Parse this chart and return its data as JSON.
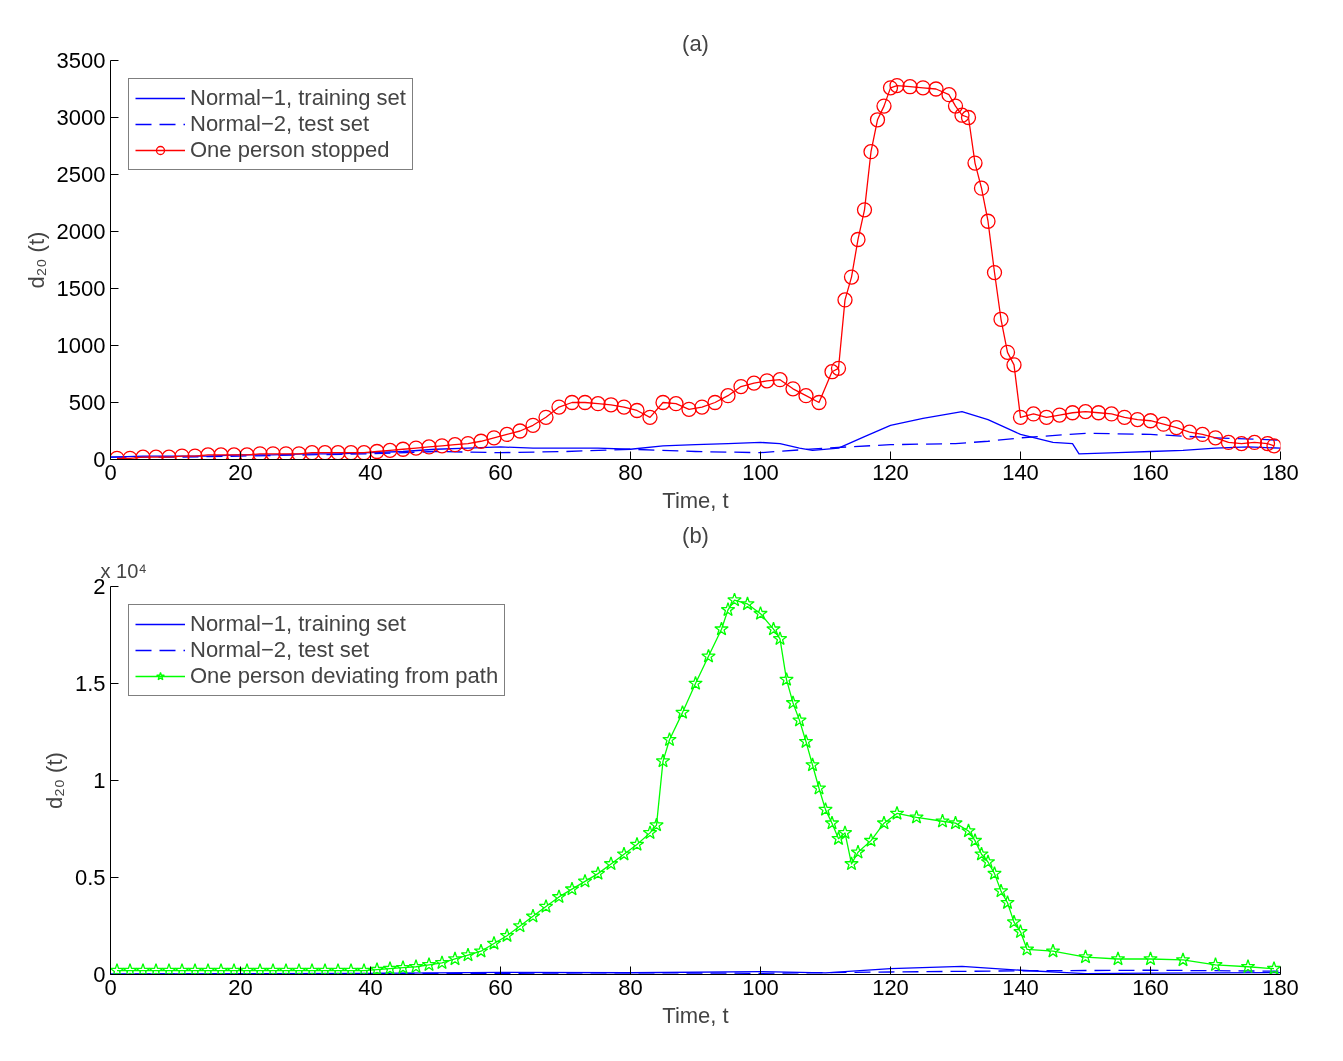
{
  "chart_data": [
    {
      "type": "line",
      "title": "(a)",
      "xlabel": "Time, t",
      "ylabel": "d₂₀ (t)",
      "xlim": [
        0,
        180
      ],
      "ylim": [
        0,
        3500
      ],
      "xticks": [
        0,
        20,
        40,
        60,
        80,
        100,
        120,
        140,
        160,
        180
      ],
      "yticks": [
        0,
        500,
        1000,
        1500,
        2000,
        2500,
        3000,
        3500
      ],
      "grid": false,
      "legend": "top left",
      "series": [
        {
          "name": "Normal−1, training set",
          "color": "#0000ff",
          "line_style": "solid",
          "marker": "none",
          "x": [
            0,
            5,
            10,
            15,
            20,
            25,
            30,
            35,
            40,
            45,
            50,
            55,
            60,
            65,
            70,
            75,
            80,
            85,
            90,
            95,
            100,
            103,
            106,
            108,
            112,
            116,
            120,
            125,
            131,
            135,
            140,
            145,
            148,
            149,
            155,
            160,
            165,
            170,
            175,
            180
          ],
          "values": [
            20,
            30,
            30,
            30,
            40,
            40,
            50,
            50,
            60,
            70,
            90,
            100,
            110,
            100,
            100,
            100,
            90,
            120,
            130,
            140,
            150,
            140,
            100,
            80,
            100,
            200,
            300,
            360,
            420,
            350,
            220,
            150,
            140,
            50,
            60,
            70,
            80,
            100,
            110,
            100
          ]
        },
        {
          "name": "Normal−2, test set",
          "color": "#0000ff",
          "line_style": "dashed",
          "marker": "none",
          "x": [
            0,
            10,
            20,
            30,
            40,
            50,
            60,
            70,
            80,
            90,
            100,
            110,
            120,
            130,
            135,
            140,
            150,
            160,
            170,
            180
          ],
          "values": [
            20,
            20,
            30,
            40,
            50,
            70,
            60,
            70,
            90,
            70,
            60,
            100,
            130,
            140,
            160,
            190,
            230,
            220,
            190,
            170
          ]
        },
        {
          "name": "One person stopped",
          "color": "#ff0000",
          "line_style": "solid",
          "marker": "circle",
          "x": [
            1,
            3,
            5,
            7,
            9,
            11,
            13,
            15,
            17,
            19,
            21,
            23,
            25,
            27,
            29,
            31,
            33,
            35,
            37,
            39,
            41,
            43,
            45,
            47,
            49,
            51,
            53,
            55,
            57,
            59,
            61,
            63,
            65,
            67,
            69,
            71,
            73,
            75,
            77,
            79,
            81,
            83,
            85,
            87,
            89,
            91,
            93,
            95,
            97,
            99,
            101,
            103,
            105,
            107,
            109,
            111,
            112,
            113,
            114,
            115,
            116,
            117,
            118,
            119,
            120,
            121,
            123,
            125,
            127,
            129,
            130,
            131,
            132,
            133,
            134,
            135,
            136,
            137,
            138,
            139,
            140,
            142,
            144,
            146,
            148,
            150,
            152,
            154,
            156,
            158,
            160,
            162,
            164,
            166,
            168,
            170,
            172,
            174,
            176,
            178,
            179
          ],
          "values": [
            10,
            10,
            20,
            20,
            20,
            30,
            30,
            40,
            40,
            40,
            40,
            50,
            50,
            50,
            50,
            60,
            60,
            60,
            60,
            60,
            70,
            80,
            90,
            100,
            110,
            120,
            130,
            140,
            160,
            190,
            220,
            250,
            300,
            370,
            460,
            500,
            500,
            490,
            480,
            460,
            430,
            370,
            500,
            490,
            440,
            460,
            500,
            560,
            640,
            670,
            690,
            700,
            620,
            560,
            500,
            770,
            800,
            1400,
            1600,
            1930,
            2190,
            2700,
            2980,
            3100,
            3260,
            3280,
            3270,
            3260,
            3250,
            3200,
            3100,
            3020,
            3000,
            2600,
            2380,
            2090,
            1640,
            1230,
            940,
            830,
            370,
            400,
            370,
            390,
            410,
            420,
            410,
            400,
            370,
            350,
            340,
            310,
            280,
            240,
            220,
            190,
            150,
            140,
            150,
            140,
            120
          ]
        }
      ]
    },
    {
      "type": "line",
      "title": "(b)",
      "xlabel": "Time, t",
      "ylabel": "d₂₀ (t)",
      "annotations": [
        "x 10⁴"
      ],
      "xlim": [
        0,
        180
      ],
      "ylim": [
        0,
        2
      ],
      "xticks": [
        0,
        20,
        40,
        60,
        80,
        100,
        120,
        140,
        160,
        180
      ],
      "yticks": [
        0,
        0.5,
        1,
        1.5,
        2
      ],
      "grid": false,
      "legend": "top left",
      "series": [
        {
          "name": "Normal−1, training set",
          "color": "#0000ff",
          "line_style": "solid",
          "marker": "none",
          "x": [
            0,
            20,
            40,
            60,
            80,
            100,
            110,
            120,
            131,
            140,
            150,
            160,
            180
          ],
          "values": [
            0.002,
            0.004,
            0.006,
            0.011,
            0.009,
            0.015,
            0.008,
            0.03,
            0.042,
            0.022,
            0.005,
            0.007,
            0.01
          ]
        },
        {
          "name": "Normal−2, test set",
          "color": "#0000ff",
          "line_style": "dashed",
          "marker": "none",
          "x": [
            0,
            40,
            60,
            80,
            100,
            120,
            140,
            160,
            180
          ],
          "values": [
            0.002,
            0.005,
            0.006,
            0.009,
            0.006,
            0.013,
            0.019,
            0.022,
            0.017
          ]
        },
        {
          "name": "One person deviating from path",
          "color": "#00ff00",
          "line_style": "solid",
          "marker": "star",
          "x": [
            1,
            3,
            5,
            7,
            9,
            11,
            13,
            15,
            17,
            19,
            21,
            23,
            25,
            27,
            29,
            31,
            33,
            35,
            37,
            39,
            41,
            43,
            45,
            47,
            49,
            51,
            53,
            55,
            57,
            59,
            61,
            63,
            65,
            67,
            69,
            71,
            73,
            75,
            77,
            79,
            81,
            83,
            84,
            85,
            86,
            88,
            90,
            92,
            94,
            95,
            96,
            98,
            100,
            102,
            103,
            104,
            105,
            106,
            107,
            108,
            109,
            110,
            111,
            112,
            113,
            114,
            115,
            117,
            119,
            121,
            124,
            128,
            130,
            132,
            133,
            134,
            135,
            136,
            137,
            138,
            139,
            140,
            141,
            145,
            150,
            155,
            160,
            165,
            170,
            175,
            179
          ],
          "values": [
            0.02,
            0.02,
            0.02,
            0.02,
            0.02,
            0.02,
            0.02,
            0.02,
            0.02,
            0.02,
            0.02,
            0.02,
            0.02,
            0.02,
            0.02,
            0.02,
            0.02,
            0.02,
            0.02,
            0.02,
            0.025,
            0.03,
            0.035,
            0.04,
            0.05,
            0.06,
            0.08,
            0.1,
            0.12,
            0.16,
            0.2,
            0.25,
            0.3,
            0.35,
            0.4,
            0.44,
            0.48,
            0.52,
            0.57,
            0.62,
            0.67,
            0.73,
            0.77,
            1.1,
            1.21,
            1.35,
            1.5,
            1.64,
            1.78,
            1.88,
            1.93,
            1.91,
            1.86,
            1.78,
            1.73,
            1.52,
            1.4,
            1.31,
            1.2,
            1.08,
            0.96,
            0.85,
            0.78,
            0.7,
            0.73,
            0.57,
            0.63,
            0.69,
            0.78,
            0.83,
            0.81,
            0.79,
            0.78,
            0.74,
            0.69,
            0.62,
            0.58,
            0.52,
            0.43,
            0.37,
            0.27,
            0.22,
            0.13,
            0.12,
            0.09,
            0.08,
            0.08,
            0.075,
            0.05,
            0.04,
            0.03
          ]
        }
      ]
    }
  ]
}
